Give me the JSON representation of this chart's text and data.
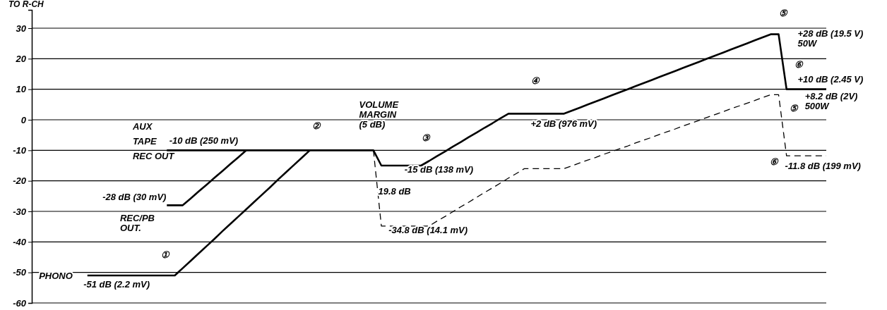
{
  "chart_data": {
    "type": "line",
    "title": "TO R-CH",
    "categories": [
      null,
      null,
      null,
      null,
      null,
      null,
      null,
      null,
      null,
      null,
      null,
      null,
      null,
      null,
      null,
      null,
      null,
      null,
      null,
      null,
      null,
      null,
      null,
      null,
      null,
      null,
      null,
      null,
      null,
      null,
      null,
      null,
      null,
      null,
      null,
      null,
      null,
      null,
      null,
      null,
      null,
      null,
      null,
      null,
      null,
      null,
      null,
      null,
      null,
      null,
      null,
      null,
      null,
      null,
      null,
      null,
      null,
      null,
      null,
      null,
      null,
      null,
      null,
      null,
      null,
      null,
      null,
      null,
      null,
      null,
      null,
      null,
      null,
      null,
      null,
      null,
      null,
      null,
      null,
      null,
      null,
      null,
      null,
      null,
      null,
      null,
      null,
      null,
      null,
      null,
      null,
      null,
      null,
      null,
      null,
      null,
      null,
      null,
      null,
      null,
      null
    ],
    "ylim": [
      -60,
      36
    ],
    "yticks": [
      -60,
      -50,
      -40,
      -30,
      -20,
      -10,
      0,
      10,
      20,
      30
    ],
    "tick_labels": "y",
    "grid": "y",
    "marker": "none",
    "series": [
      {
        "color": "#000000",
        "values": [
          null,
          null,
          null,
          null,
          null,
          null,
          null,
          -51,
          -51,
          -51,
          -51,
          -51,
          -51,
          -51,
          -51,
          -51,
          -51,
          -51,
          -51,
          -48.6,
          -46.2,
          -43.8,
          -41.4,
          -39.0,
          -36.5,
          -34.1,
          -31.7,
          -29.3,
          -26.9,
          -24.5,
          -22.1,
          -19.6,
          -17.2,
          -14.8,
          -12.4,
          -10,
          null,
          null,
          null,
          null,
          null,
          null,
          null,
          null,
          null,
          null,
          null,
          null,
          null,
          null,
          null,
          null,
          null,
          null,
          null,
          null,
          null,
          null,
          null,
          null,
          null,
          null,
          null,
          null,
          null,
          null,
          null,
          null,
          null,
          null,
          null,
          null,
          null,
          null,
          null,
          null,
          null,
          null,
          null,
          null,
          null,
          null,
          null,
          null,
          null,
          null,
          null,
          null,
          null,
          null,
          null,
          null,
          null,
          null,
          null,
          null,
          null,
          null,
          null,
          null,
          null
        ]
      },
      {
        "color": "#000000",
        "values": [
          null,
          null,
          null,
          null,
          null,
          null,
          null,
          null,
          null,
          null,
          null,
          null,
          null,
          null,
          null,
          null,
          null,
          -28,
          -28,
          -28,
          -25.8,
          -23.5,
          -21.3,
          -19,
          -16.8,
          -14.5,
          -12.3,
          -10,
          null,
          null,
          null,
          null,
          null,
          null,
          null,
          null,
          null,
          null,
          null,
          null,
          null,
          null,
          null,
          null,
          null,
          null,
          null,
          null,
          null,
          null,
          null,
          null,
          null,
          null,
          null,
          null,
          null,
          null,
          null,
          null,
          null,
          null,
          null,
          null,
          null,
          null,
          null,
          null,
          null,
          null,
          null,
          null,
          null,
          null,
          null,
          null,
          null,
          null,
          null,
          null,
          null,
          null,
          null,
          null,
          null,
          null,
          null,
          null,
          null,
          null,
          null,
          null,
          null,
          null,
          null,
          null,
          null,
          null,
          null,
          null,
          null
        ]
      },
      {
        "color": "#000000",
        "values": [
          null,
          null,
          null,
          null,
          null,
          null,
          null,
          null,
          null,
          null,
          null,
          null,
          null,
          null,
          null,
          null,
          null,
          -10,
          -10,
          -10,
          -10,
          -10,
          -10,
          -10,
          -10,
          -10,
          -10,
          -10,
          -10,
          -10,
          -10,
          -10,
          -10,
          -10,
          -10,
          -10,
          -10,
          -10,
          -10,
          -10,
          -10,
          -10,
          -10,
          -10,
          -15,
          -15,
          -15,
          -15,
          -15,
          -15,
          -13.5,
          -11.9,
          -10.4,
          -8.8,
          -7.3,
          -5.7,
          -4.2,
          -2.6,
          -1.1,
          0.5,
          2,
          2,
          2,
          2,
          2,
          2,
          2,
          2,
          3,
          4,
          5,
          6,
          7,
          8,
          9,
          10,
          11,
          12,
          13,
          14,
          15,
          16,
          17,
          18,
          19,
          20,
          21,
          22,
          23,
          24,
          25,
          26,
          27,
          28,
          28,
          10,
          10,
          10,
          10,
          10,
          10
        ]
      },
      {
        "color": "#000000",
        "line_style": "dashed",
        "values": [
          null,
          null,
          null,
          null,
          null,
          null,
          null,
          null,
          null,
          null,
          null,
          null,
          null,
          null,
          null,
          null,
          null,
          null,
          null,
          null,
          null,
          null,
          null,
          null,
          null,
          null,
          null,
          null,
          null,
          null,
          null,
          null,
          null,
          null,
          null,
          null,
          null,
          null,
          null,
          null,
          null,
          null,
          null,
          -10,
          -34.8,
          -34.8,
          -34.8,
          -34.8,
          -34.8,
          -34.8,
          -34.8,
          -33.2,
          -31.7,
          -30.1,
          -28.5,
          -27.0,
          -25.4,
          -23.8,
          -22.3,
          -20.7,
          -19.1,
          -17.6,
          -16,
          -16,
          -16,
          -16,
          -16,
          -16,
          -15.1,
          -14.1,
          -13.2,
          -12.3,
          -11.3,
          -10.4,
          -9.5,
          -8.6,
          -7.6,
          -6.7,
          -5.8,
          -4.8,
          -3.9,
          -3.0,
          -2.0,
          -1.1,
          -0.2,
          0.8,
          1.7,
          2.6,
          3.6,
          4.5,
          5.4,
          6.3,
          7.3,
          8.2,
          8.2,
          -11.8,
          -11.8,
          -11.8,
          -11.8,
          -11.8,
          -11.8
        ]
      }
    ],
    "annotations": [
      "PHONO",
      "-51 dB (2.2 mV)",
      "-28 dB (30 mV)",
      "REC/PB\nOUT.",
      "AUX\nTAPE\nREC OUT",
      "-10 dB (250 mV)",
      "VOLUME\nMARGIN\n(5 dB)",
      "-15 dB (138 mV)",
      "19.8 dB",
      "-34.8 dB (14.1 mV)",
      "+2 dB (976 mV)",
      "+28 dB (19.5 V)\n50W",
      "+10 dB (2.45 V)",
      "+8.2 dB (2V)\n500W",
      "-11.8 dB (199 mV)",
      "①",
      "②",
      "③",
      "④",
      "⑤",
      "⑥",
      "⑤",
      "⑥"
    ]
  }
}
